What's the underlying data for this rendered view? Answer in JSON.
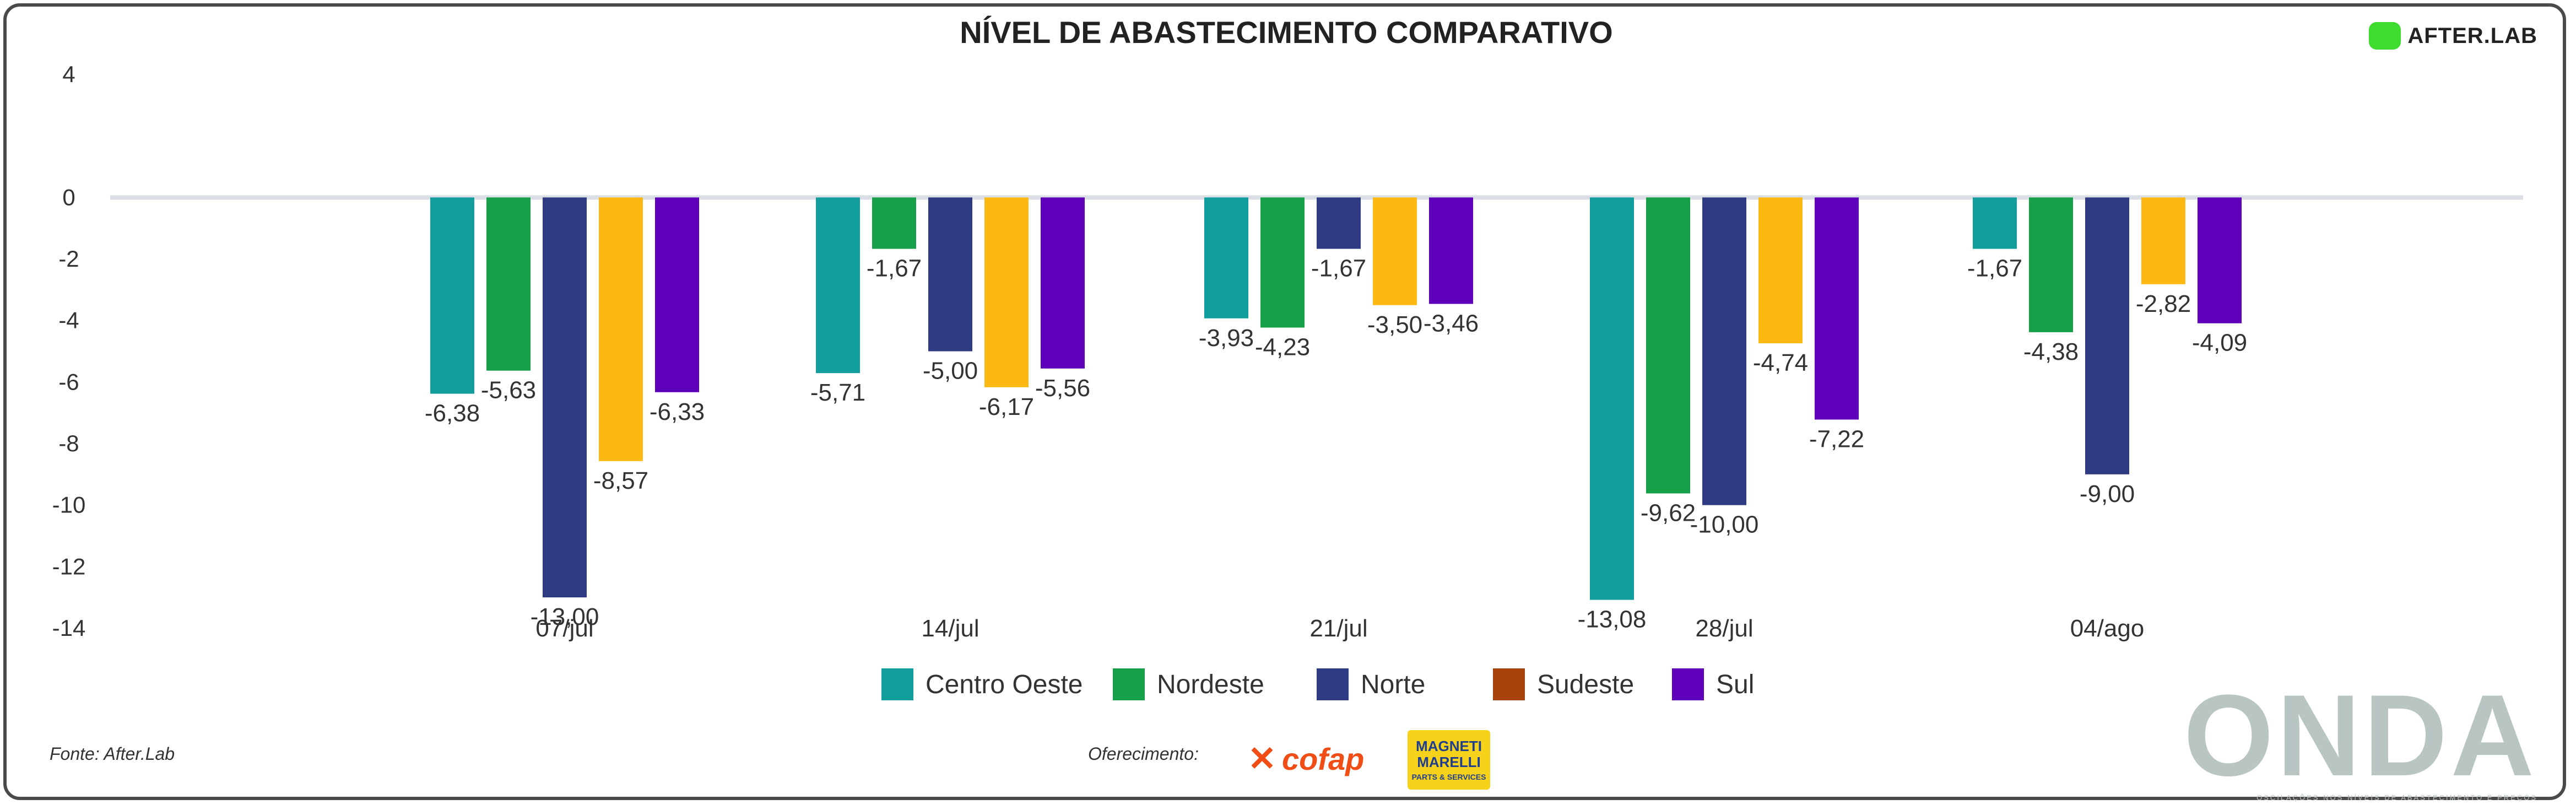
{
  "branding": {
    "after_lab": "AFTER.LAB",
    "source": "Fonte: After.Lab",
    "sponsor_label": "Oferecimento:",
    "cofap": "cofap",
    "magneti_marelli": "MAGNETI MARELLI",
    "magneti_sub": "PARTS & SERVICES",
    "onda": "ONDA",
    "onda_tagline": "OSCILAÇÕES NOS NÍVEIS DE ABASTECIMENTO E PREÇOS"
  },
  "colors": {
    "Centro Oeste": "#139e9e",
    "Nordeste": "#17a04a",
    "Norte": "#2e3a82",
    "Sudeste": "#fcb813",
    "Sudeste_legend": "#a6420c",
    "Sul": "#5e00b9",
    "grid": "#d9dfe4",
    "text": "#333333"
  },
  "chart_data": {
    "type": "bar",
    "title": "NÍVEL DE ABASTECIMENTO COMPARATIVO",
    "xlabel": "",
    "ylabel": "",
    "ylim": [
      -14,
      4
    ],
    "yticks": [
      4,
      0,
      -2,
      -4,
      -6,
      -8,
      -10,
      -12,
      -14
    ],
    "ytick_labels": [
      "4",
      "0",
      "-2",
      "-4",
      "-6",
      "-8",
      "-10",
      "-12",
      "-14"
    ],
    "categories": [
      "07/jul",
      "14/jul",
      "21/jul",
      "28/jul",
      "04/ago"
    ],
    "series": [
      {
        "name": "Centro Oeste",
        "values": [
          -6.38,
          -5.71,
          -3.93,
          -13.08,
          -1.67
        ],
        "labels": [
          "-6,38",
          "-5,71",
          "-3,93",
          "-13,08",
          "-1,67"
        ]
      },
      {
        "name": "Nordeste",
        "values": [
          -5.63,
          -1.67,
          -4.23,
          -9.62,
          -4.38
        ],
        "labels": [
          "-5,63",
          "-1,67",
          "-4,23",
          "-9,62",
          "-4,38"
        ]
      },
      {
        "name": "Norte",
        "values": [
          -13.0,
          -5.0,
          -1.67,
          -10.0,
          -9.0
        ],
        "labels": [
          "-13,00",
          "-5,00",
          "-1,67",
          "-10,00",
          "-9,00"
        ]
      },
      {
        "name": "Sudeste",
        "values": [
          -8.57,
          -6.17,
          -3.5,
          -4.74,
          -2.82
        ],
        "labels": [
          "-8,57",
          "-6,17",
          "-3,50",
          "-4,74",
          "-2,82"
        ]
      },
      {
        "name": "Sul",
        "values": [
          -6.33,
          -5.56,
          -3.46,
          -7.22,
          -4.09
        ],
        "labels": [
          "-6,33",
          "-5,56",
          "-3,46",
          "-7,22",
          "-4,09"
        ]
      }
    ],
    "legend": {
      "position": "bottom",
      "entries": [
        "Centro Oeste",
        "Nordeste",
        "Norte",
        "Sudeste",
        "Sul"
      ]
    },
    "grid": false
  }
}
